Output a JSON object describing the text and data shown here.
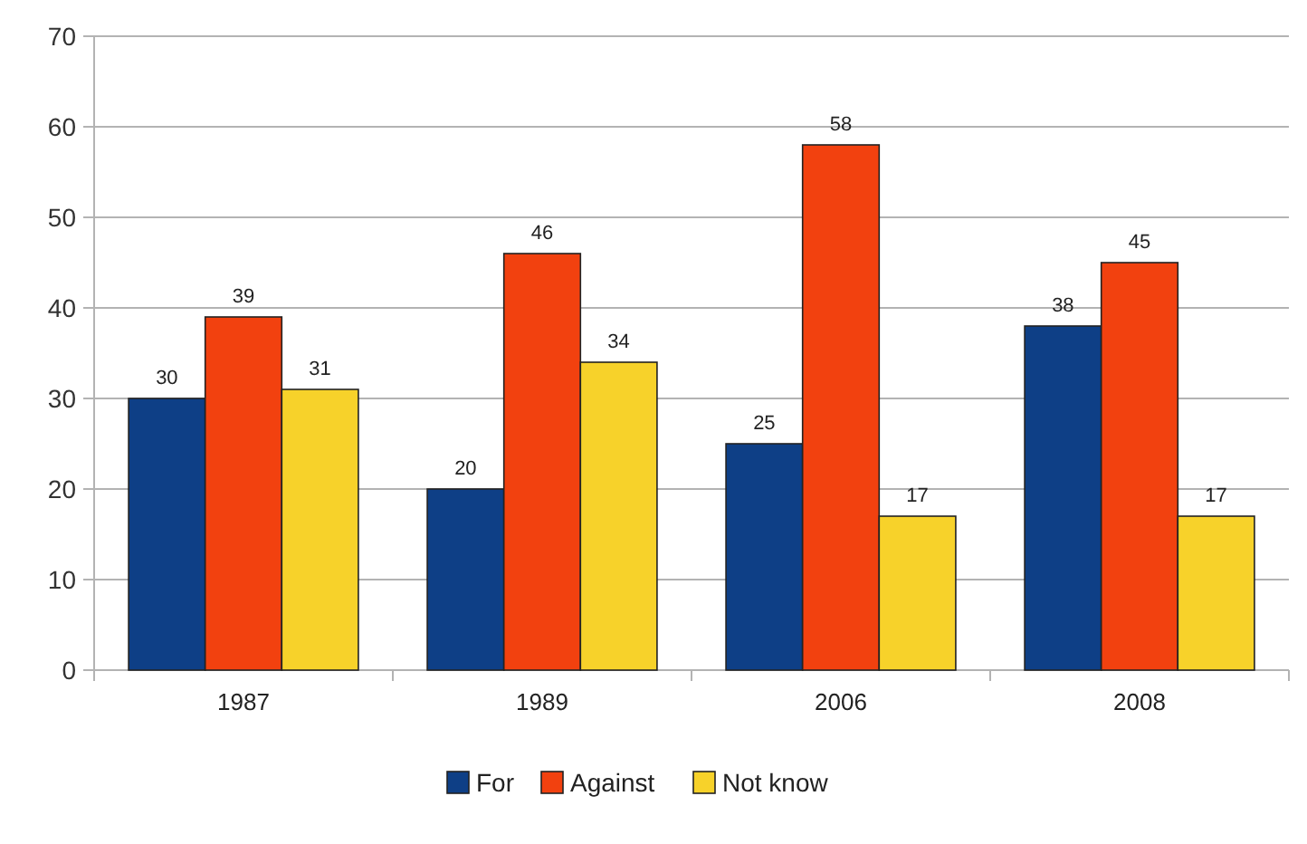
{
  "chart_data": {
    "type": "bar",
    "categories": [
      "1987",
      "1989",
      "2006",
      "2008"
    ],
    "series": [
      {
        "name": "For",
        "color": "#0e3f86",
        "values": [
          30,
          20,
          25,
          38
        ]
      },
      {
        "name": "Against",
        "color": "#f2410f",
        "values": [
          39,
          46,
          58,
          45
        ]
      },
      {
        "name": "Not know",
        "color": "#f7d22a",
        "values": [
          31,
          34,
          17,
          17
        ]
      }
    ],
    "ylim": [
      0,
      70
    ],
    "yticks": [
      0,
      10,
      20,
      30,
      40,
      50,
      60,
      70
    ],
    "grid": "y",
    "legend": "bottom",
    "data_labels": true
  }
}
